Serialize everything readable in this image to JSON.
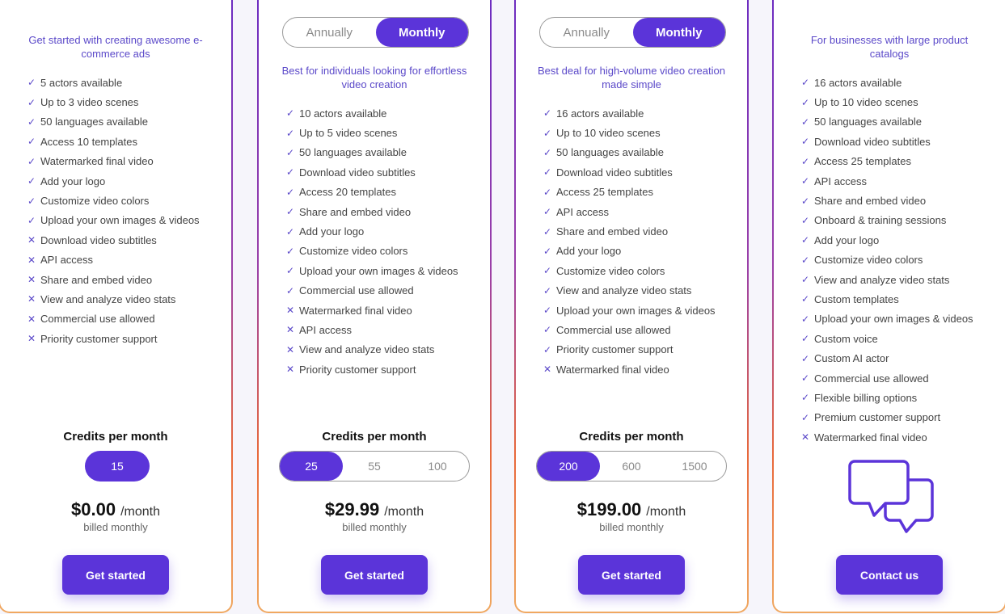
{
  "colors": {
    "accent": "#5b34d9",
    "text_accent": "#5b49c9"
  },
  "plans": [
    {
      "description": "Get started with creating awesome e-commerce ads",
      "features": [
        [
          "check",
          "5 actors available"
        ],
        [
          "check",
          "Up to 3 video scenes"
        ],
        [
          "check",
          "50 languages available"
        ],
        [
          "check",
          "Access 10 templates"
        ],
        [
          "check",
          "Watermarked final video"
        ],
        [
          "check",
          "Add your logo"
        ],
        [
          "check",
          "Customize video colors"
        ],
        [
          "check",
          "Upload your own images & videos"
        ],
        [
          "x",
          "Download video subtitles"
        ],
        [
          "x",
          "API access"
        ],
        [
          "x",
          "Share and embed video"
        ],
        [
          "x",
          "View and analyze video stats"
        ],
        [
          "x",
          "Commercial use allowed"
        ],
        [
          "x",
          "Priority customer support"
        ]
      ],
      "credits_label": "Credits per month",
      "credit_options": [
        "15"
      ],
      "selected_credit": "15",
      "price": "$0.00",
      "period": "/month",
      "billed": "billed monthly",
      "button": "Get started"
    },
    {
      "toggle": [
        "Annually",
        "Monthly"
      ],
      "toggle_selected": "Monthly",
      "description": "Best for individuals looking for effortless video creation",
      "features": [
        [
          "check",
          "10 actors available"
        ],
        [
          "check",
          "Up to 5 video scenes"
        ],
        [
          "check",
          "50 languages available"
        ],
        [
          "check",
          "Download video subtitles"
        ],
        [
          "check",
          "Access 20 templates"
        ],
        [
          "check",
          "Share and embed video"
        ],
        [
          "check",
          "Add your logo"
        ],
        [
          "check",
          "Customize video colors"
        ],
        [
          "check",
          "Upload your own images & videos"
        ],
        [
          "check",
          "Commercial use allowed"
        ],
        [
          "x",
          "Watermarked final video"
        ],
        [
          "x",
          "API access"
        ],
        [
          "x",
          "View and analyze video stats"
        ],
        [
          "x",
          "Priority customer support"
        ]
      ],
      "credits_label": "Credits per month",
      "credit_options": [
        "25",
        "55",
        "100"
      ],
      "selected_credit": "25",
      "price": "$29.99",
      "period": "/month",
      "billed": "billed monthly",
      "button": "Get started"
    },
    {
      "toggle": [
        "Annually",
        "Monthly"
      ],
      "toggle_selected": "Monthly",
      "description": "Best deal for high-volume video creation made simple",
      "features": [
        [
          "check",
          "16 actors available"
        ],
        [
          "check",
          "Up to 10 video scenes"
        ],
        [
          "check",
          "50 languages available"
        ],
        [
          "check",
          "Download video subtitles"
        ],
        [
          "check",
          "Access 25 templates"
        ],
        [
          "check",
          "API access"
        ],
        [
          "check",
          "Share and embed video"
        ],
        [
          "check",
          "Add your logo"
        ],
        [
          "check",
          "Customize video colors"
        ],
        [
          "check",
          "View and analyze video stats"
        ],
        [
          "check",
          "Upload your own images & videos"
        ],
        [
          "check",
          "Commercial use allowed"
        ],
        [
          "check",
          "Priority customer support"
        ],
        [
          "x",
          "Watermarked final video"
        ]
      ],
      "credits_label": "Credits per month",
      "credit_options": [
        "200",
        "600",
        "1500"
      ],
      "selected_credit": "200",
      "price": "$199.00",
      "period": "/month",
      "billed": "billed monthly",
      "button": "Get started"
    },
    {
      "description": "For businesses with large product catalogs",
      "features": [
        [
          "check",
          "16 actors available"
        ],
        [
          "check",
          "Up to 10 video scenes"
        ],
        [
          "check",
          "50 languages available"
        ],
        [
          "check",
          "Download video subtitles"
        ],
        [
          "check",
          "Access 25 templates"
        ],
        [
          "check",
          "API access"
        ],
        [
          "check",
          "Share and embed video"
        ],
        [
          "check",
          "Onboard & training sessions"
        ],
        [
          "check",
          "Add your logo"
        ],
        [
          "check",
          "Customize video colors"
        ],
        [
          "check",
          "View and analyze video stats"
        ],
        [
          "check",
          "Custom templates"
        ],
        [
          "check",
          "Upload your own images & videos"
        ],
        [
          "check",
          "Custom voice"
        ],
        [
          "check",
          "Custom AI actor"
        ],
        [
          "check",
          "Commercial use allowed"
        ],
        [
          "check",
          "Flexible billing options"
        ],
        [
          "check",
          "Premium customer support"
        ],
        [
          "x",
          "Watermarked final video"
        ]
      ],
      "icon": "chat-bubbles-icon",
      "button": "Contact us"
    }
  ]
}
